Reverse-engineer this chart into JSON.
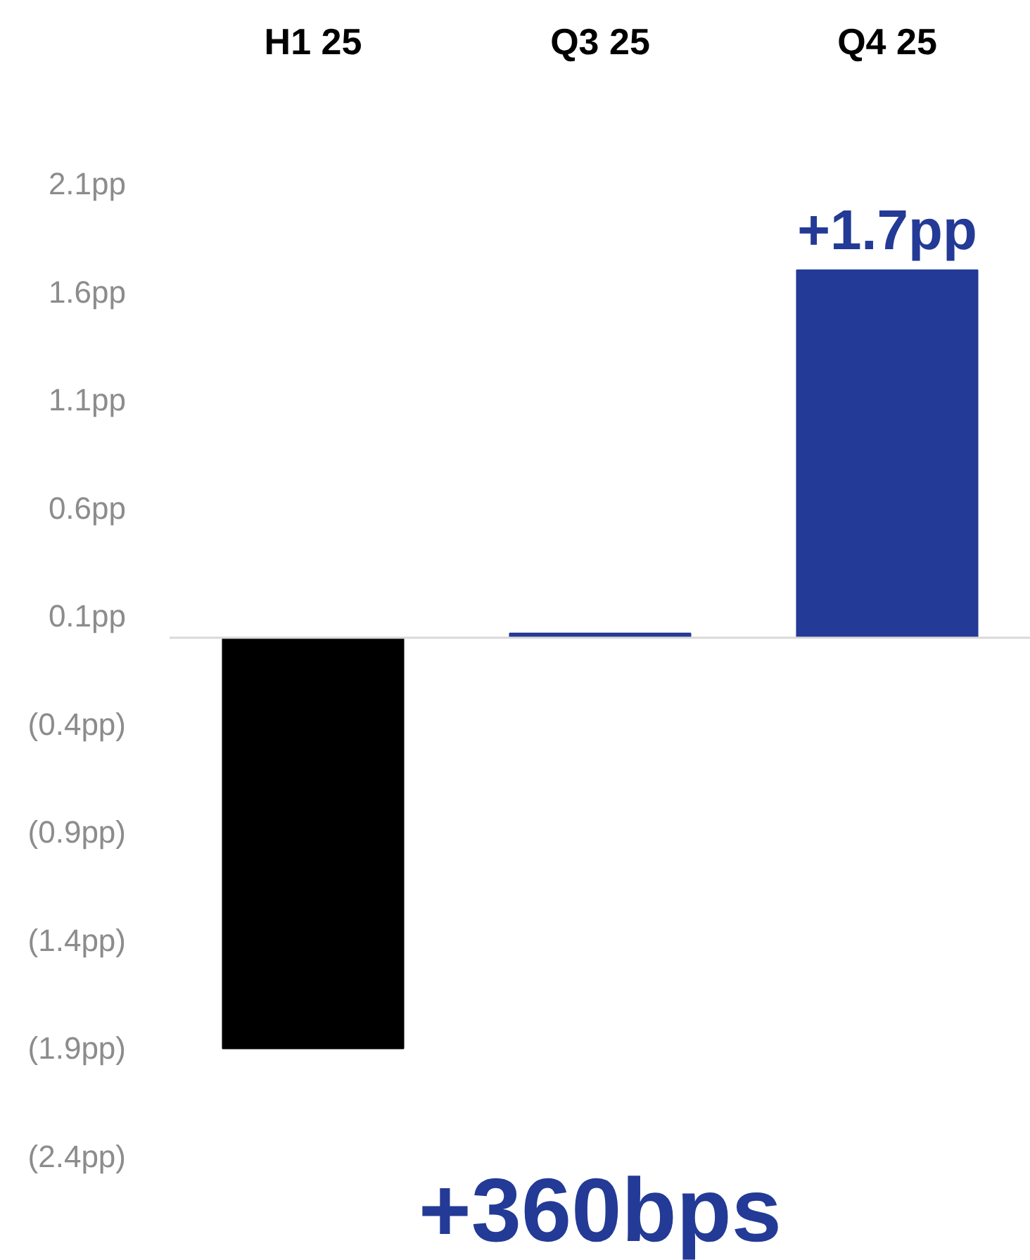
{
  "chart_data": {
    "type": "bar",
    "categories": [
      "H1 25",
      "Q3 25",
      "Q4 25"
    ],
    "values": [
      -1.9,
      0.02,
      1.7
    ],
    "colors": [
      "#000000",
      "#233a96",
      "#233a96"
    ],
    "value_labels": [
      null,
      null,
      "+1.7pp"
    ],
    "ylim": [
      -2.4,
      2.1
    ],
    "yticks": [
      {
        "value": 2.1,
        "label": "2.1pp"
      },
      {
        "value": 1.6,
        "label": "1.6pp"
      },
      {
        "value": 1.1,
        "label": "1.1pp"
      },
      {
        "value": 0.6,
        "label": "0.6pp"
      },
      {
        "value": 0.1,
        "label": "0.1pp"
      },
      {
        "value": -0.4,
        "label": "(0.4pp)"
      },
      {
        "value": -0.9,
        "label": "(0.9pp)"
      },
      {
        "value": -1.4,
        "label": "(1.4pp)"
      },
      {
        "value": -1.9,
        "label": "(1.9pp)"
      },
      {
        "value": -2.4,
        "label": "(2.4pp)"
      }
    ],
    "ref_lines": [
      {
        "axis": "y",
        "value": 0,
        "color": "#d9d9d9"
      }
    ],
    "annotations": [
      "+360bps"
    ],
    "grid": false
  }
}
